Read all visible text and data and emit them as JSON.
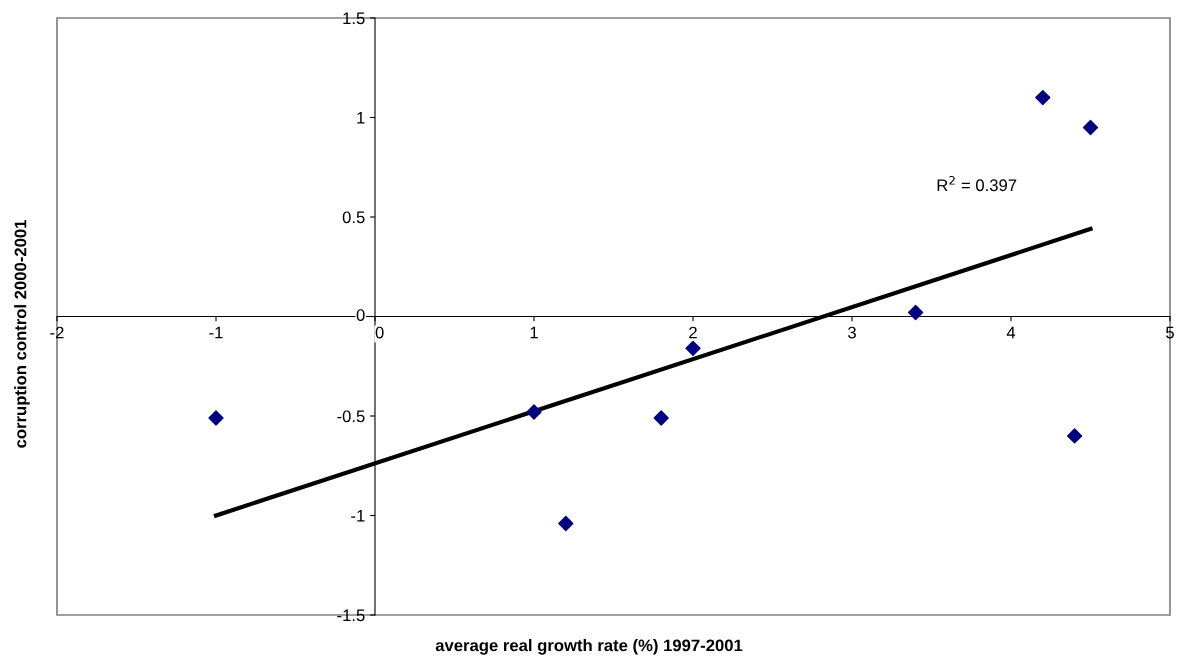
{
  "chart_data": {
    "type": "scatter",
    "xlabel": "average real growth rate (%) 1997-2001",
    "ylabel": "corruption control 2000-2001",
    "annotations": [
      "R$^{2}$ = 0.397"
    ],
    "series": [
      {
        "color": "#000080",
        "marker": "diamond",
        "x": [
          -1,
          1.0,
          1.2,
          1.8,
          2.0,
          3.4,
          4.2,
          4.5,
          4.4
        ],
        "values": [
          -0.51,
          -0.48,
          -1.04,
          -0.51,
          -0.16,
          0.02,
          1.1,
          0.95,
          -0.6
        ]
      },
      {
        "type": "line",
        "color": "#000000",
        "x": [
          -1,
          4.5
        ],
        "values": [
          -1.0,
          0.44
        ]
      }
    ],
    "xlim": [
      -2,
      5
    ],
    "xticks": [
      -2,
      -1,
      0,
      1,
      2,
      3,
      4,
      5
    ],
    "ylim": [
      -1.5,
      1.5
    ],
    "yticks": [
      -1.5,
      -1,
      -0.5,
      0,
      0.5,
      1,
      1.5
    ],
    "grid": false,
    "legend": false
  }
}
